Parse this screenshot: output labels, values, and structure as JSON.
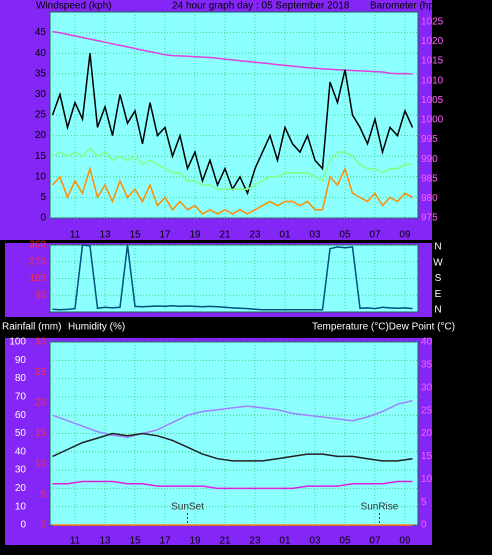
{
  "chart_data": [
    {
      "type": "line",
      "title": "24 hour graph day : 05 September 2018",
      "ylabel": "Windspeed (kph)",
      "y2label": "Barometer (hpa)",
      "grid": true,
      "x": [
        9.5,
        10,
        10.5,
        11,
        11.5,
        12,
        12.5,
        13,
        13.5,
        14,
        14.5,
        15,
        15.5,
        16,
        16.5,
        17,
        17.5,
        18,
        18.5,
        19,
        19.5,
        20,
        20.5,
        21,
        21.5,
        22,
        22.5,
        23,
        23.5,
        24,
        24.5,
        25,
        25.5,
        26,
        26.5,
        27,
        27.5,
        28,
        28.5,
        29,
        29.5,
        30,
        30.5,
        31,
        31.5,
        32,
        32.5,
        33,
        33.5
      ],
      "xlim": [
        9.33,
        33.87
      ],
      "xticks": [
        11,
        13,
        15,
        17,
        19,
        21,
        23,
        {
          "value": 25,
          "label": "01"
        },
        {
          "value": 27,
          "label": "03"
        },
        {
          "value": 29,
          "label": "05"
        },
        {
          "value": 31,
          "label": "07"
        },
        {
          "value": 33,
          "label": "09"
        }
      ],
      "ylim": [
        0,
        50
      ],
      "yticks": [
        0,
        5,
        10,
        15,
        20,
        25,
        30,
        35,
        40,
        45
      ],
      "y2lim": [
        975,
        1027.5
      ],
      "y2ticks": [
        975,
        980,
        985,
        990,
        995,
        1000,
        1005,
        1010,
        1015,
        1020,
        1025
      ],
      "series": [
        {
          "color": "#e040e0",
          "axis": "y2",
          "values": [
            1022.5,
            1022.2,
            1021.8,
            1021.4,
            1021,
            1020.6,
            1020.2,
            1019.8,
            1019.4,
            1019,
            1018.6,
            1018.2,
            1017.8,
            1017.4,
            1017,
            1016.6,
            1016.4,
            1016.3,
            1016.2,
            1016.1,
            1016,
            1015.9,
            1015.7,
            1015.5,
            1015.3,
            1015.1,
            1014.9,
            1014.7,
            1014.5,
            1014.3,
            1014.1,
            1013.9,
            1013.7,
            1013.5,
            1013.3,
            1013.2,
            1013,
            1012.9,
            1012.8,
            1012.7,
            1012.6,
            1012.5,
            1012.4,
            1012.3,
            1012.2,
            1011.9,
            1011.8,
            1011.8,
            1011.7
          ]
        },
        {
          "color": "#000000",
          "values": [
            25,
            30,
            22,
            28,
            24,
            40,
            22,
            27,
            20,
            30,
            23,
            26,
            18,
            28,
            20,
            22,
            15,
            20,
            12,
            16,
            9,
            14,
            8,
            12,
            7,
            10,
            6,
            12,
            16,
            20,
            14,
            22,
            18,
            16,
            20,
            14,
            12,
            33,
            28,
            36,
            25,
            22,
            18,
            24,
            16,
            22,
            20,
            26,
            22
          ]
        },
        {
          "color": "#80ff80",
          "values": [
            15,
            16,
            15,
            16,
            15,
            17,
            15,
            16,
            14,
            15,
            14,
            15,
            13,
            14,
            13,
            12,
            11,
            11,
            9,
            9,
            8,
            8,
            7,
            7,
            7,
            7,
            7,
            8,
            9,
            10,
            10,
            11,
            11,
            11,
            11,
            10,
            9,
            14,
            16,
            16,
            15,
            13,
            12,
            12,
            11,
            12,
            12,
            13,
            13
          ]
        },
        {
          "color": "#ff8c00",
          "values": [
            8,
            10,
            5,
            9,
            6,
            12,
            5,
            8,
            4,
            9,
            5,
            7,
            4,
            8,
            3,
            5,
            2,
            4,
            2,
            3,
            1,
            2,
            1,
            2,
            1,
            2,
            1,
            2,
            3,
            4,
            3,
            4,
            4,
            3,
            4,
            2,
            2,
            10,
            8,
            12,
            6,
            5,
            4,
            6,
            3,
            5,
            4,
            6,
            5
          ]
        }
      ]
    },
    {
      "type": "line",
      "grid": true,
      "show_xtick_labels": false,
      "x": [
        9.5,
        10,
        10.5,
        11,
        11.5,
        12,
        12.5,
        13,
        13.5,
        14,
        14.5,
        15,
        15.5,
        16,
        16.5,
        17,
        17.5,
        18,
        18.5,
        19,
        19.5,
        20,
        20.5,
        21,
        21.5,
        22,
        22.5,
        23,
        23.5,
        24,
        24.5,
        25,
        25.5,
        26,
        26.5,
        27,
        27.5,
        28,
        28.5,
        29,
        29.5,
        30,
        30.5,
        31,
        31.5,
        32,
        32.5,
        33,
        33.5
      ],
      "xlim": [
        9.33,
        33.87
      ],
      "xticks": [
        11,
        13,
        15,
        17,
        19,
        21,
        23,
        25,
        27,
        29,
        31,
        33
      ],
      "ylim": [
        0,
        360
      ],
      "yticks": [
        90,
        180,
        270,
        360
      ],
      "compass": [
        "N",
        "W",
        "S",
        "E",
        "N"
      ],
      "series": [
        {
          "color": "#005080",
          "values": [
            15,
            12,
            14,
            18,
            360,
            355,
            20,
            25,
            22,
            25,
            360,
            30,
            28,
            30,
            32,
            30,
            34,
            30,
            32,
            30,
            28,
            30,
            28,
            25,
            22,
            20,
            18,
            15,
            12,
            12,
            12,
            12,
            12,
            12,
            12,
            12,
            12,
            340,
            350,
            345,
            350,
            20,
            22,
            18,
            25,
            22,
            20,
            22,
            18
          ]
        }
      ]
    },
    {
      "type": "line",
      "grid": true,
      "rain_label": "Rainfall (mm)",
      "ylabel": "Humidity (%)",
      "y2label": "Temperature (°C)Dew Point (°C)",
      "x": [
        9.5,
        10.5,
        11.5,
        12.5,
        13.5,
        14.5,
        15.5,
        16.5,
        17.5,
        18.5,
        19.5,
        20.5,
        21.5,
        22.5,
        23.5,
        24.5,
        25.5,
        26.5,
        27.5,
        28.5,
        29.5,
        30.5,
        31.5,
        32.5,
        33.5
      ],
      "xlim": [
        9.33,
        33.87
      ],
      "xticks": [
        11,
        13,
        15,
        17,
        19,
        21,
        23,
        {
          "value": 25,
          "label": "01"
        },
        {
          "value": 27,
          "label": "03"
        },
        {
          "value": 29,
          "label": "05"
        },
        {
          "value": 31,
          "label": "07"
        },
        {
          "value": 33,
          "label": "09"
        }
      ],
      "ylim": [
        0,
        100
      ],
      "yticks": [
        0,
        10,
        20,
        30,
        40,
        50,
        60,
        70,
        80,
        90,
        100
      ],
      "rain_ylim": [
        0,
        30
      ],
      "rain_yticks": [
        0,
        5,
        10,
        15,
        20,
        25,
        30
      ],
      "y2lim": [
        0,
        40
      ],
      "y2ticks": [
        0,
        5,
        10,
        15,
        20,
        25,
        30,
        35,
        40
      ],
      "annotations": [
        {
          "text": "SunSet",
          "x": 18.5
        },
        {
          "text": "SunRise",
          "x": 31.3
        }
      ],
      "series": [
        {
          "color": "#a080ff",
          "values": [
            60,
            57,
            54,
            51,
            49,
            48,
            50,
            52,
            56,
            60,
            62,
            63,
            64,
            65,
            64,
            63,
            61,
            60,
            59,
            58,
            57,
            59,
            62,
            66,
            68
          ]
        },
        {
          "color": "#202020",
          "axis": "y2",
          "values": [
            15,
            16.5,
            18,
            19,
            20,
            19.5,
            20,
            19.5,
            18.5,
            17,
            15.5,
            14.5,
            14,
            14,
            14,
            14.5,
            15,
            15.5,
            15.5,
            15,
            15,
            14.5,
            14,
            14,
            14.5
          ]
        },
        {
          "color": "#e020e0",
          "axis": "y2",
          "values": [
            9,
            9,
            9.5,
            9.5,
            9.5,
            9,
            9,
            8.5,
            8.5,
            8.5,
            8.5,
            8,
            8,
            8,
            8,
            8,
            8,
            8.5,
            8.5,
            8.5,
            9,
            9,
            9,
            9.5,
            9.5
          ]
        },
        {
          "color": "#ff8000",
          "axis": "rain",
          "values": [
            0,
            0,
            0,
            0,
            0,
            0,
            0,
            0,
            0,
            0,
            0,
            0,
            0,
            0,
            0,
            0,
            0,
            0,
            0,
            0,
            0,
            0,
            0,
            0,
            0
          ]
        }
      ]
    }
  ]
}
